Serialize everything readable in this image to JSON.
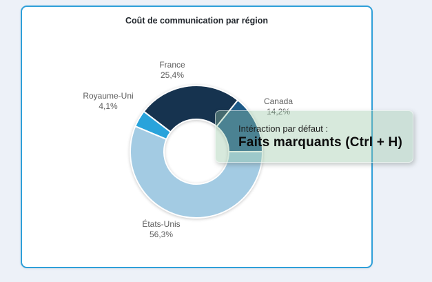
{
  "page": {
    "background_color": "#edf1f8"
  },
  "card": {
    "border_color": "#2e9fd9",
    "background_color": "#ffffff"
  },
  "chart_data": {
    "type": "pie",
    "subtype": "donut",
    "title": "Coût de communication par région",
    "legend": "none",
    "data_labels": "category-and-percent-outside",
    "start_angle_deg": -52.6,
    "inner_radius_ratio": 0.49,
    "separator_color": "#ffffff",
    "categories": [
      "France",
      "Canada",
      "États-Unis",
      "Royaume-Uni"
    ],
    "values": [
      25.4,
      14.2,
      56.3,
      4.1
    ],
    "slices": [
      {
        "label": "France",
        "value": 25.4,
        "pct_label": "25,4%",
        "color": "#16334f"
      },
      {
        "label": "Canada",
        "value": 14.2,
        "pct_label": "14,2%",
        "color": "#1d5a88"
      },
      {
        "label": "États-Unis",
        "value": 56.3,
        "pct_label": "56,3%",
        "color": "#a3cbe3"
      },
      {
        "label": "Royaume-Uni",
        "value": 4.1,
        "pct_label": "4,1%",
        "color": "#29a3db"
      }
    ]
  },
  "tooltip": {
    "line1": "Intéraction par défaut :",
    "line2": "Faits marquants (Ctrl + H)",
    "background_color": "rgba(150,198,164,0.38)"
  }
}
